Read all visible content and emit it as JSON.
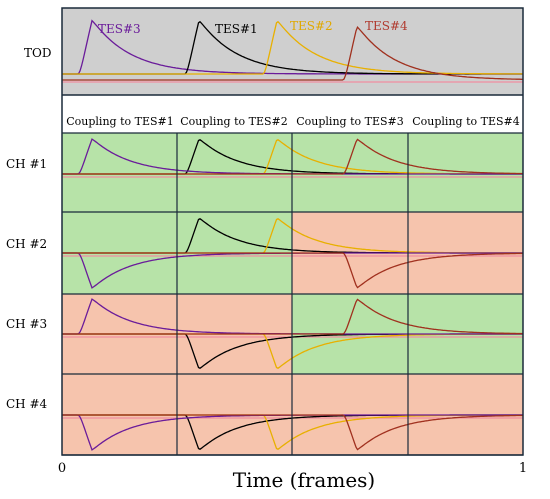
{
  "tod_label": "TOD",
  "tes_labels": [
    {
      "text": "TES#3",
      "color": "#6a1b9a"
    },
    {
      "text": "TES#1",
      "color": "#000000"
    },
    {
      "text": "TES#2",
      "color": "#e0a800"
    },
    {
      "text": "TES#4",
      "color": "#b03a2e"
    }
  ],
  "coupling_headers": [
    "Coupling to TES#1",
    "Coupling to TES#2",
    "Coupling to TES#3",
    "Coupling to TES#4"
  ],
  "channels": [
    "CH #1",
    "CH #2",
    "CH #3",
    "CH #4"
  ],
  "x_axis": {
    "label": "Time (frames)",
    "ticks": [
      "0",
      "1"
    ]
  },
  "colors": {
    "tod_bg": "#cfcfcf",
    "coupled_bg": "#b7e3a8",
    "uncoupled_bg": "#f6c4ad",
    "TES#1": "#000000",
    "TES#2": "#e8b000",
    "TES#3": "#6a1b9a",
    "TES#4": "#a0301e",
    "baseline_pink": "#f08ea0"
  },
  "coupling_matrix": [
    [
      true,
      true,
      true,
      true
    ],
    [
      true,
      true,
      false,
      false
    ],
    [
      false,
      false,
      true,
      true
    ],
    [
      false,
      false,
      false,
      false
    ]
  ]
}
